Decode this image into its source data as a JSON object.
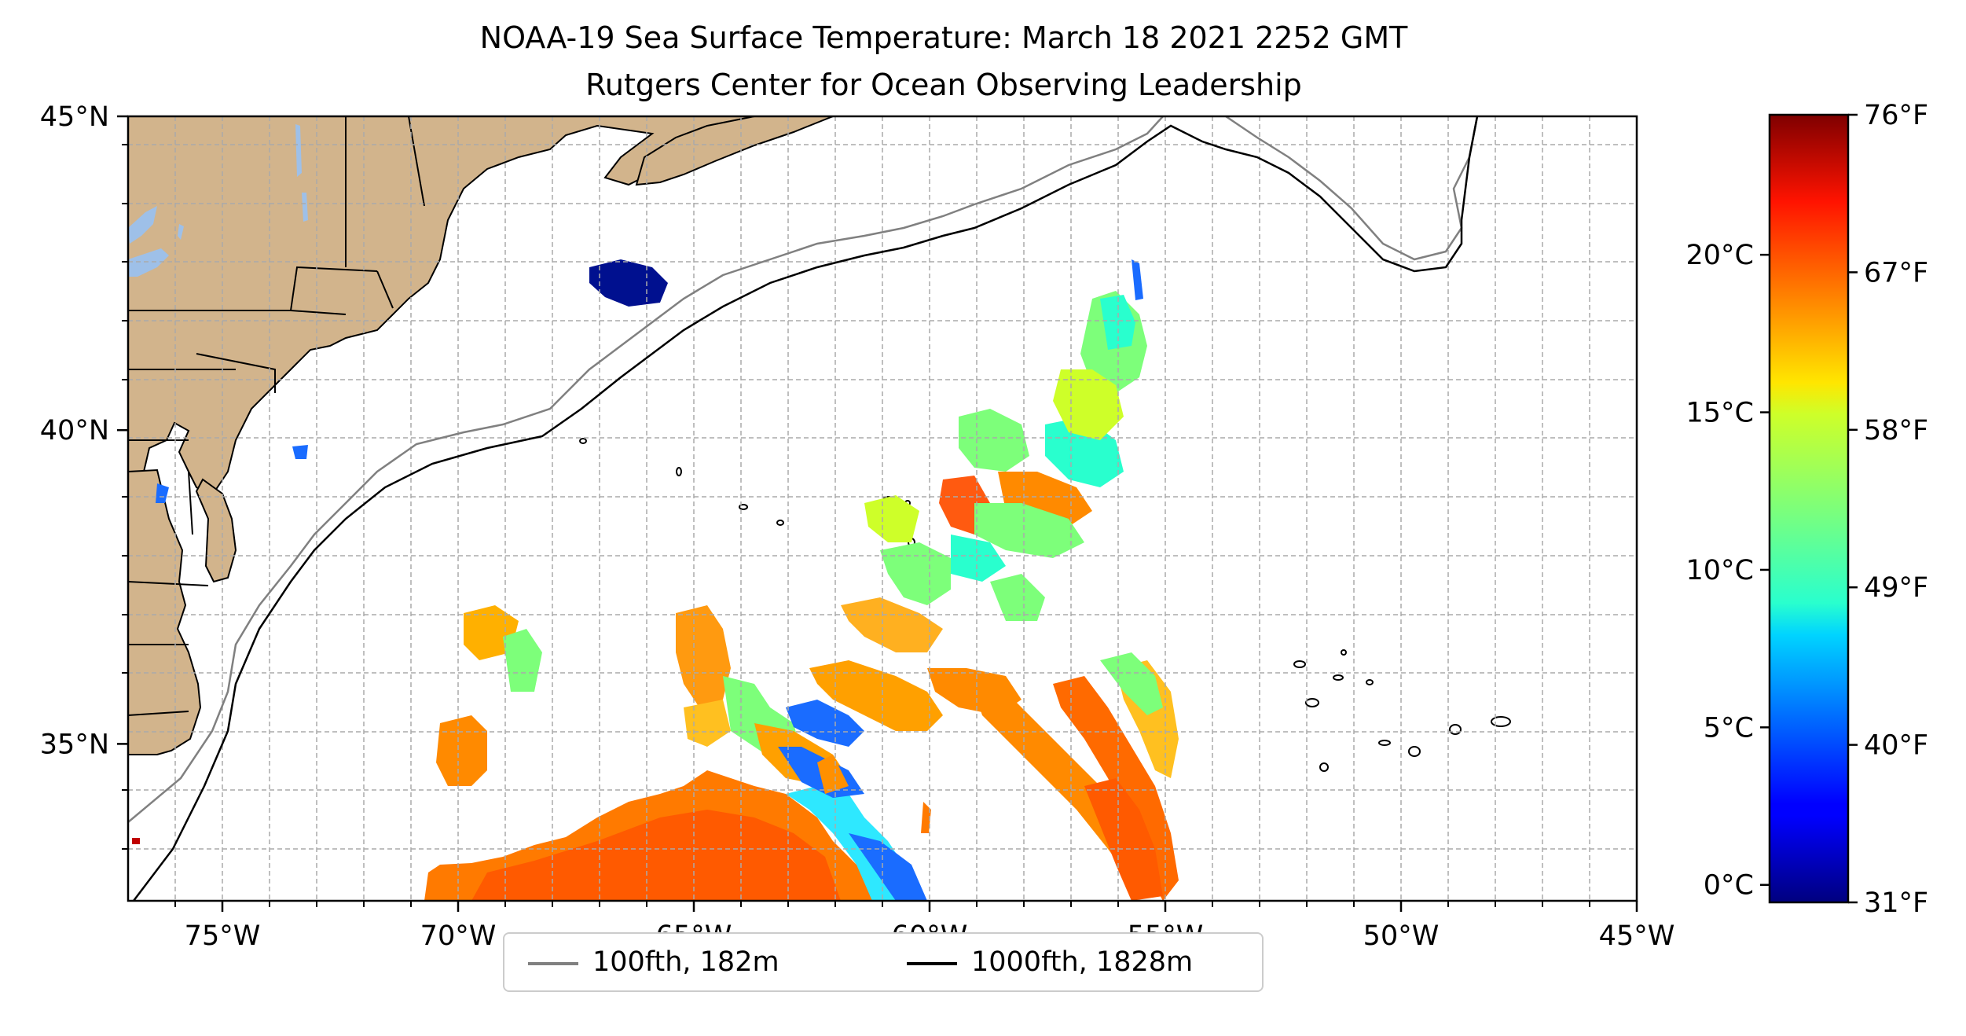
{
  "title": {
    "line1": "NOAA-19 Sea Surface Temperature: March 18 2021 2252 GMT",
    "line2": "Rutgers Center for Ocean Observing Leadership"
  },
  "map": {
    "lon_range": [
      -77,
      -45
    ],
    "lat_range": [
      32.5,
      45
    ],
    "lon_ticks": [
      {
        "value": -75,
        "label": "75°W"
      },
      {
        "value": -70,
        "label": "70°W"
      },
      {
        "value": -65,
        "label": "65°W"
      },
      {
        "value": -60,
        "label": "60°W"
      },
      {
        "value": -55,
        "label": "55°W"
      },
      {
        "value": -50,
        "label": "50°W"
      },
      {
        "value": -45,
        "label": "45°W"
      }
    ],
    "lat_ticks": [
      {
        "value": 35,
        "label": "35°N"
      },
      {
        "value": 40,
        "label": "40°N"
      },
      {
        "value": 45,
        "label": "45°N"
      }
    ],
    "grid": "dashed, 1 degree",
    "land_color": "#d2b48c",
    "lake_color": "#9ec0e8",
    "legend": [
      {
        "label": "100fth, 182m",
        "color": "#808080"
      },
      {
        "label": "1000fth, 1828m",
        "color": "#000000"
      }
    ],
    "legend_position": "bottom-center"
  },
  "colorbar": {
    "colormap": "jet",
    "celsius_labels": [
      {
        "value": 0,
        "label": "0°C"
      },
      {
        "value": 5,
        "label": "5°C"
      },
      {
        "value": 10,
        "label": "10°C"
      },
      {
        "value": 15,
        "label": "15°C"
      },
      {
        "value": 20,
        "label": "20°C"
      }
    ],
    "fahrenheit_labels": [
      {
        "value": 31,
        "label": "31°F"
      },
      {
        "value": 40,
        "label": "40°F"
      },
      {
        "value": 49,
        "label": "49°F"
      },
      {
        "value": 58,
        "label": "58°F"
      },
      {
        "value": 67,
        "label": "67°F"
      },
      {
        "value": 76,
        "label": "76°F"
      }
    ],
    "range_f": [
      31,
      76
    ]
  }
}
